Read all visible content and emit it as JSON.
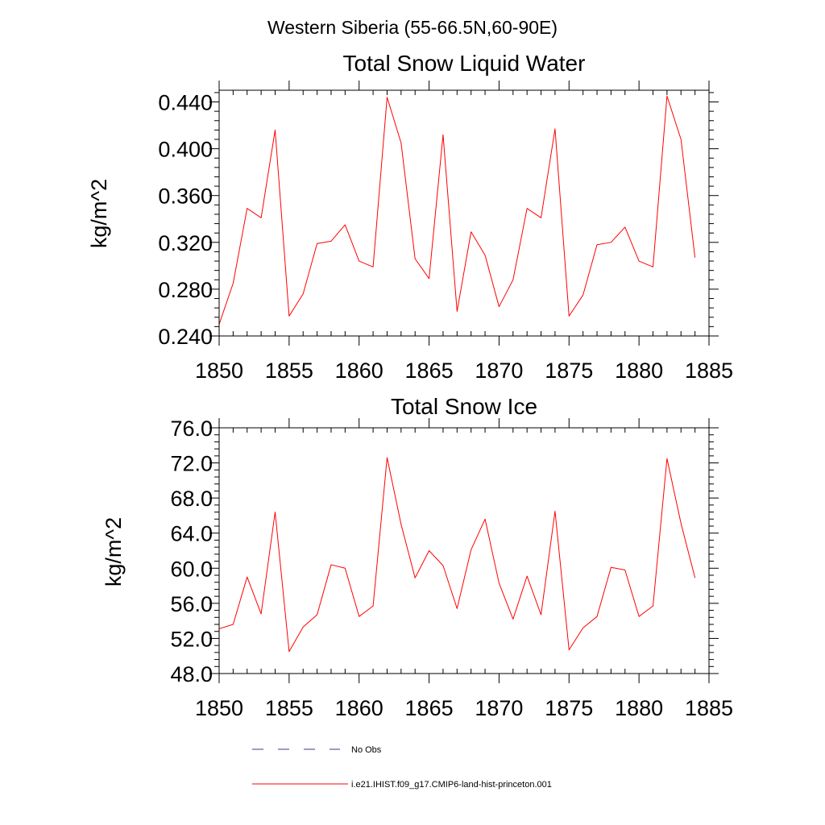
{
  "figure_title": "Western Siberia (55-66.5N,60-90E)",
  "legend": [
    {
      "label": "No Obs",
      "style": "dashed",
      "color": "#3a3a8c"
    },
    {
      "label": "i.e21.IHIST.f09_g17.CMIP6-land-hist-princeton.001",
      "style": "solid",
      "color": "#ff0000"
    }
  ],
  "chart_data": [
    {
      "type": "line",
      "title": "Total Snow Liquid Water",
      "ylabel": "kg/m^2",
      "xlabel": "",
      "xlim": [
        1850,
        1885
      ],
      "ylim": [
        0.24,
        0.45
      ],
      "xticks": [
        1850,
        1855,
        1860,
        1865,
        1870,
        1875,
        1880,
        1885
      ],
      "xtick_labels": [
        "1850",
        "1855",
        "1860",
        "1865",
        "1870",
        "1875",
        "1880",
        "1885"
      ],
      "yticks": [
        0.24,
        0.28,
        0.32,
        0.36,
        0.4,
        0.44
      ],
      "ytick_labels": [
        "0.240",
        "0.280",
        "0.320",
        "0.360",
        "0.400",
        "0.440"
      ],
      "x": [
        1850,
        1851,
        1852,
        1853,
        1854,
        1855,
        1856,
        1857,
        1858,
        1859,
        1860,
        1861,
        1862,
        1863,
        1864,
        1865,
        1866,
        1867,
        1868,
        1869,
        1870,
        1871,
        1872,
        1873,
        1874,
        1875,
        1876,
        1877,
        1878,
        1879,
        1880,
        1881,
        1882,
        1883,
        1884
      ],
      "series": [
        {
          "color": "#ff0000",
          "values": [
            0.25,
            0.285,
            0.349,
            0.341,
            0.416,
            0.257,
            0.276,
            0.319,
            0.321,
            0.335,
            0.304,
            0.299,
            0.444,
            0.405,
            0.306,
            0.289,
            0.412,
            0.261,
            0.329,
            0.309,
            0.265,
            0.288,
            0.349,
            0.341,
            0.417,
            0.257,
            0.275,
            0.318,
            0.32,
            0.333,
            0.304,
            0.299,
            0.445,
            0.408,
            0.307
          ]
        }
      ]
    },
    {
      "type": "line",
      "title": "Total Snow Ice",
      "ylabel": "kg/m^2",
      "xlabel": "",
      "xlim": [
        1850,
        1885
      ],
      "ylim": [
        48.0,
        76.0
      ],
      "xticks": [
        1850,
        1855,
        1860,
        1865,
        1870,
        1875,
        1880,
        1885
      ],
      "xtick_labels": [
        "1850",
        "1855",
        "1860",
        "1865",
        "1870",
        "1875",
        "1880",
        "1885"
      ],
      "yticks": [
        48,
        52,
        56,
        60,
        64,
        68,
        72,
        76
      ],
      "ytick_labels": [
        "48.0",
        "52.0",
        "56.0",
        "60.0",
        "64.0",
        "68.0",
        "72.0",
        "76.0"
      ],
      "x": [
        1850,
        1851,
        1852,
        1853,
        1854,
        1855,
        1856,
        1857,
        1858,
        1859,
        1860,
        1861,
        1862,
        1863,
        1864,
        1865,
        1866,
        1867,
        1868,
        1869,
        1870,
        1871,
        1872,
        1873,
        1874,
        1875,
        1876,
        1877,
        1878,
        1879,
        1880,
        1881,
        1882,
        1883,
        1884
      ],
      "series": [
        {
          "color": "#ff0000",
          "values": [
            53.1,
            53.6,
            59.0,
            54.8,
            66.4,
            50.5,
            53.3,
            54.7,
            60.4,
            60.0,
            54.5,
            55.7,
            72.6,
            65.0,
            58.9,
            62.0,
            60.3,
            55.4,
            62.1,
            65.6,
            58.3,
            54.2,
            59.1,
            54.7,
            66.5,
            50.7,
            53.2,
            54.5,
            60.1,
            59.8,
            54.5,
            55.7,
            72.5,
            65.1,
            58.9
          ]
        }
      ]
    }
  ]
}
